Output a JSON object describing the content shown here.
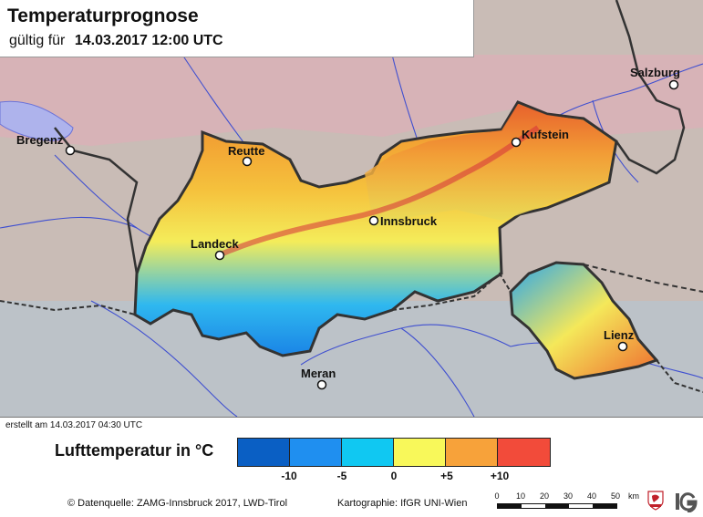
{
  "header": {
    "title": "Temperaturprognose",
    "validity_prefix": "gültig für",
    "validity_date": "14.03.2017 12:00 UTC"
  },
  "map": {
    "cities": [
      {
        "name": "Salzburg",
        "id": "salzburg"
      },
      {
        "name": "Bregenz",
        "id": "bregenz"
      },
      {
        "name": "Kufstein",
        "id": "kufstein"
      },
      {
        "name": "Reutte",
        "id": "reutte"
      },
      {
        "name": "Innsbruck",
        "id": "innsbruck"
      },
      {
        "name": "Landeck",
        "id": "landeck"
      },
      {
        "name": "Lienz",
        "id": "lienz"
      },
      {
        "name": "Meran",
        "id": "meran"
      }
    ]
  },
  "footer": {
    "created": "erstellt am 14.03.2017 04:30 UTC",
    "source": "© Datenquelle: ZAMG-Innsbruck 2017, LWD-Tirol",
    "cartography": "Kartographie: IfGR UNI-Wien"
  },
  "legend": {
    "title": "Lufttemperatur in °C",
    "colors": [
      "#0a5fc4",
      "#1f8ff0",
      "#10c8f2",
      "#f8f85a",
      "#f7a23a",
      "#f24b3a"
    ],
    "ticks": [
      "-10",
      "-5",
      "0",
      "+5",
      "+10"
    ]
  },
  "scale_bar": {
    "labels": [
      "0",
      "10",
      "20",
      "30",
      "40",
      "50",
      "km"
    ]
  },
  "logos": [
    "tirol-logo",
    "ig-logo"
  ]
}
